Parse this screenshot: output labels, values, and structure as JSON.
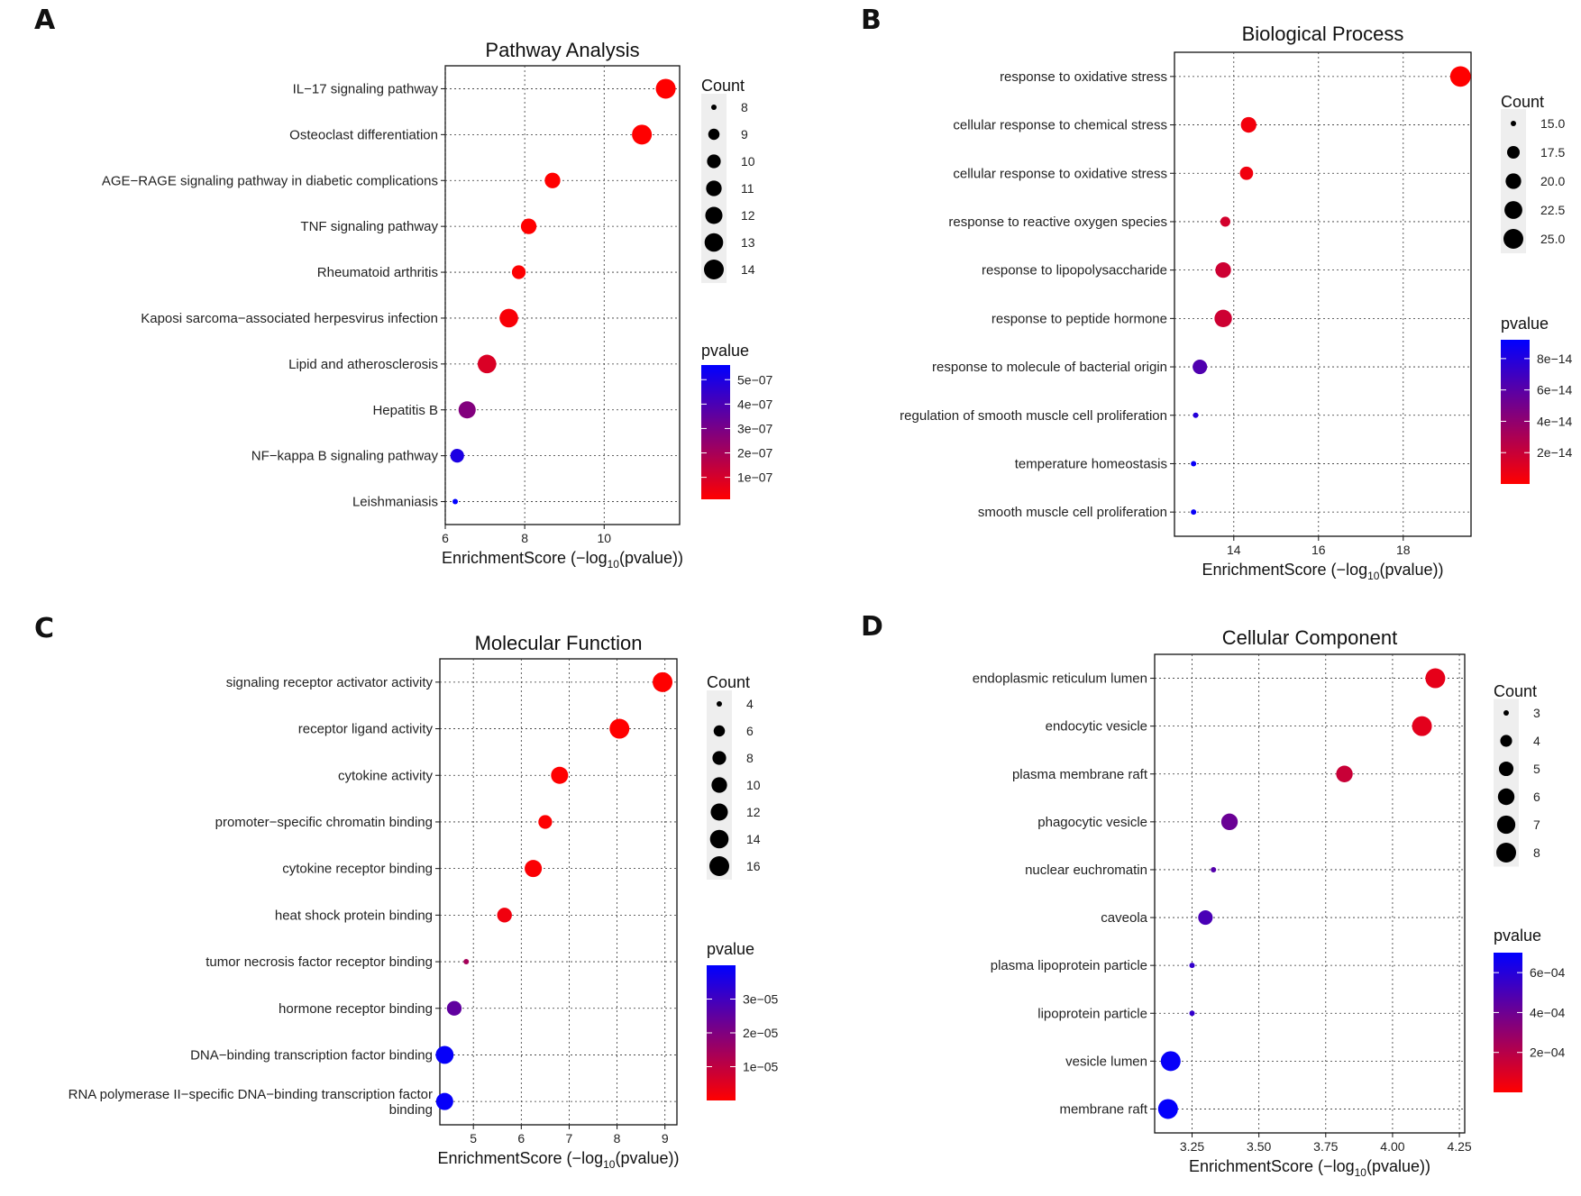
{
  "panels": [
    "A",
    "B",
    "C",
    "D"
  ],
  "legend_titles": {
    "size": "Count",
    "color": "pvalue"
  },
  "color_scale": {
    "low": "#ff0000",
    "high": "#0000ff"
  },
  "chart_data": [
    {
      "panel": "A",
      "type": "scatter",
      "title": "Pathway Analysis",
      "xlabel_prefix": "EnrichmentScore (−log",
      "xlabel_sub": "10",
      "xlabel_suffix": "(pvalue))",
      "xlim": [
        6,
        11.9
      ],
      "xticks": [
        6,
        8,
        10
      ],
      "xtick_labels": [
        "6",
        "8",
        "10"
      ],
      "categories": [
        "IL−17 signaling pathway",
        "Osteoclast differentiation",
        "AGE−RAGE signaling pathway in diabetic complications",
        "TNF signaling pathway",
        "Rheumatoid arthritis",
        "Kaposi sarcoma−associated herpesvirus infection",
        "Lipid and atherosclerosis",
        "Hepatitis B",
        "NF−kappa B signaling pathway",
        "Leishmaniasis"
      ],
      "x": [
        11.55,
        10.95,
        8.7,
        8.1,
        7.85,
        7.6,
        7.05,
        6.55,
        6.3,
        6.25
      ],
      "count": [
        14,
        14,
        11,
        11,
        10,
        13,
        13,
        12,
        10,
        8
      ],
      "pvalue": [
        2.8e-12,
        1.1e-11,
        2e-09,
        7.9e-09,
        1.4e-08,
        2.5e-08,
        8.9e-08,
        2.8e-07,
        5e-07,
        5.6e-07
      ],
      "size_legend": {
        "values": [
          8,
          9,
          10,
          11,
          12,
          13,
          14
        ],
        "labels": [
          "8",
          "9",
          "10",
          "11",
          "12",
          "13",
          "14"
        ]
      },
      "color_legend": {
        "min": 1e-08,
        "max": 5.6e-07,
        "ticks": [
          5e-07,
          4e-07,
          3e-07,
          2e-07,
          1e-07
        ],
        "labels": [
          "5e−07",
          "4e−07",
          "3e−07",
          "2e−07",
          "1e−07"
        ]
      }
    },
    {
      "panel": "B",
      "type": "scatter",
      "title": "Biological Process",
      "xlabel_prefix": "EnrichmentScore (−log",
      "xlabel_sub": "10",
      "xlabel_suffix": "(pvalue))",
      "xlim": [
        12.6,
        19.6
      ],
      "xticks": [
        14,
        16,
        18
      ],
      "xtick_labels": [
        "14",
        "16",
        "18"
      ],
      "categories": [
        "response to oxidative stress",
        "cellular response to chemical stress",
        "cellular response to oxidative stress",
        "response to reactive oxygen species",
        "response to lipopolysaccharide",
        "response to peptide hormone",
        "response to molecule of bacterial origin",
        "regulation of smooth muscle cell proliferation",
        "temperature homeostasis",
        "smooth muscle cell proliferation"
      ],
      "x": [
        19.35,
        14.35,
        14.3,
        13.8,
        13.75,
        13.75,
        13.2,
        13.1,
        13.05,
        13.05
      ],
      "count": [
        26,
        20,
        18,
        16,
        20,
        22,
        19,
        12,
        12,
        12
      ],
      "pvalue": [
        4.5e-20,
        4.5e-15,
        5e-15,
        1.6e-14,
        1.8e-14,
        1.8e-14,
        6.3e-14,
        7.9e-14,
        8.9e-14,
        8.9e-14
      ],
      "size_legend": {
        "values": [
          15.0,
          17.5,
          20.0,
          22.5,
          25.0
        ],
        "labels": [
          "15.0",
          "17.5",
          "20.0",
          "22.5",
          "25.0"
        ]
      },
      "color_legend": {
        "min": 0,
        "max": 9.2e-14,
        "ticks": [
          8e-14,
          6e-14,
          4e-14,
          2e-14
        ],
        "labels": [
          "8e−14",
          "6e−14",
          "4e−14",
          "2e−14"
        ]
      }
    },
    {
      "panel": "C",
      "type": "scatter",
      "title": "Molecular Function",
      "xlabel_prefix": "EnrichmentScore (−log",
      "xlabel_sub": "10",
      "xlabel_suffix": "(pvalue))",
      "xlim": [
        4.3,
        9.25
      ],
      "xticks": [
        5,
        6,
        7,
        8,
        9
      ],
      "xtick_labels": [
        "5",
        "6",
        "7",
        "8",
        "9"
      ],
      "categories": [
        "signaling receptor activator activity",
        "receptor ligand activity",
        "cytokine activity",
        "promoter−specific chromatin binding",
        "cytokine receptor binding",
        "heat shock protein binding",
        "tumor necrosis factor receptor binding",
        "hormone receptor binding",
        "DNA−binding transcription factor binding",
        "RNA polymerase II−specific DNA−binding transcription factor binding"
      ],
      "x": [
        8.95,
        8.05,
        6.8,
        6.5,
        6.25,
        5.65,
        4.85,
        4.6,
        4.4,
        4.4
      ],
      "count": [
        16,
        16,
        12,
        8,
        12,
        9,
        4,
        9,
        13,
        12
      ],
      "pvalue": [
        1.1e-09,
        8.9e-09,
        1.6e-07,
        3.2e-07,
        5.6e-07,
        2.2e-06,
        1.4e-05,
        2.5e-05,
        3.9e-05,
        3.9e-05
      ],
      "size_legend": {
        "values": [
          4,
          6,
          8,
          10,
          12,
          14,
          16
        ],
        "labels": [
          "4",
          "6",
          "8",
          "10",
          "12",
          "14",
          "16"
        ]
      },
      "color_legend": {
        "min": 0,
        "max": 4e-05,
        "ticks": [
          3e-05,
          2e-05,
          1e-05
        ],
        "labels": [
          "3e−05",
          "2e−05",
          "1e−05"
        ]
      }
    },
    {
      "panel": "D",
      "type": "scatter",
      "title": "Cellular Component",
      "xlabel_prefix": "EnrichmentScore (−log",
      "xlabel_sub": "10",
      "xlabel_suffix": "(pvalue))",
      "xlim": [
        3.11,
        4.27
      ],
      "xticks": [
        3.25,
        3.5,
        3.75,
        4.0,
        4.25
      ],
      "xtick_labels": [
        "3.25",
        "3.50",
        "3.75",
        "4.00",
        "4.25"
      ],
      "categories": [
        "endoplasmic reticulum lumen",
        "endocytic vesicle",
        "plasma membrane raft",
        "phagocytic vesicle",
        "nuclear euchromatin",
        "caveola",
        "plasma lipoprotein particle",
        "lipoprotein particle",
        "vesicle lumen",
        "membrane raft"
      ],
      "x": [
        4.16,
        4.11,
        3.82,
        3.39,
        3.33,
        3.3,
        3.25,
        3.25,
        3.17,
        3.16
      ],
      "count": [
        8,
        8,
        6,
        6,
        3,
        5,
        3,
        3,
        8,
        8
      ],
      "pvalue": [
        6.9e-05,
        7.8e-05,
        0.00015,
        0.00041,
        0.00047,
        0.0005,
        0.00056,
        0.00056,
        0.00068,
        0.00069
      ],
      "size_legend": {
        "values": [
          3,
          4,
          5,
          6,
          7,
          8
        ],
        "labels": [
          "3",
          "4",
          "5",
          "6",
          "7",
          "8"
        ]
      },
      "color_legend": {
        "min": 0,
        "max": 0.0007,
        "ticks": [
          0.0006,
          0.0004,
          0.0002
        ],
        "labels": [
          "6e−04",
          "4e−04",
          "2e−04"
        ]
      }
    }
  ]
}
